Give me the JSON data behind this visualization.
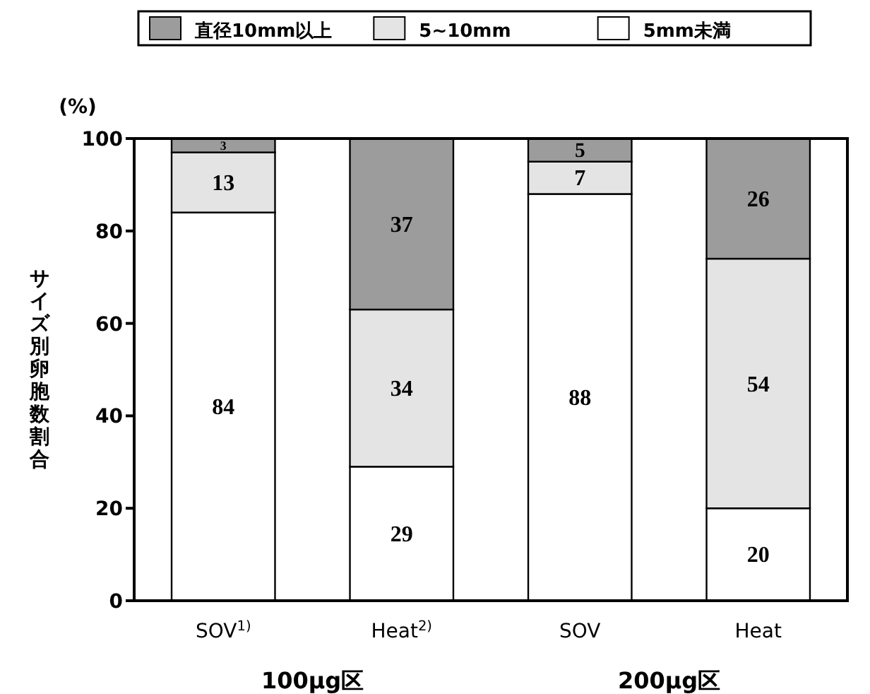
{
  "chart_data": {
    "type": "bar",
    "stacked": true,
    "categories": [
      "SOV$^{1)}$",
      "Heat$^{2)}$",
      "SOV",
      "Heat"
    ],
    "series": [
      {
        "name": "5mm未満",
        "color": "#ffffff",
        "values": [
          84,
          29,
          88,
          20
        ]
      },
      {
        "name": "5~10mm",
        "color": "#e4e4e4",
        "values": [
          13,
          34,
          7,
          54
        ]
      },
      {
        "name": "直径10mm以上",
        "color": "#9c9c9c",
        "values": [
          3,
          37,
          5,
          26
        ]
      }
    ],
    "ylabel": "サイズ別卵胞数割合",
    "ylim": [
      0,
      100
    ],
    "yticks": [
      0,
      20,
      40,
      60,
      80,
      100
    ],
    "data_labels": true,
    "legend": "top",
    "grid": false,
    "annotations": [
      "(%)",
      "100μg区",
      "200μg区"
    ]
  }
}
